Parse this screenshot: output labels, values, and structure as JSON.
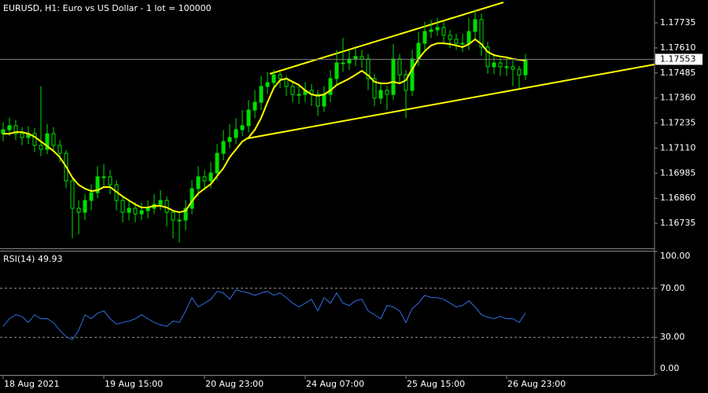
{
  "chart_data": [
    {
      "type": "candlestick",
      "title": "EURUSD, H1:  Euro vs US Dollar - 1 lot = 100000",
      "categories": [
        "18 Aug 2021",
        null,
        null,
        null,
        null,
        null,
        null,
        null,
        null,
        null,
        null,
        null,
        null,
        null,
        null,
        null,
        "19 Aug 15:00",
        null,
        null,
        null,
        null,
        null,
        null,
        null,
        null,
        null,
        null,
        null,
        null,
        null,
        null,
        null,
        "20 Aug 23:00",
        null,
        null,
        null,
        null,
        null,
        null,
        null,
        null,
        null,
        null,
        null,
        null,
        null,
        null,
        null,
        "24 Aug 07:00",
        null,
        null,
        null,
        null,
        null,
        null,
        null,
        null,
        null,
        null,
        null,
        null,
        null,
        null,
        null,
        "25 Aug 15:00",
        null,
        null,
        null,
        null,
        null,
        null,
        null,
        null,
        null,
        null,
        null,
        null,
        null,
        null,
        null,
        "26 Aug 23:00",
        null,
        null,
        null
      ],
      "open": [
        1.1718,
        1.17202,
        1.17222,
        1.17182,
        1.17163,
        1.17182,
        1.17124,
        1.17104,
        1.17182,
        1.17124,
        1.17084,
        1.16947,
        1.1681,
        1.1679,
        1.16849,
        1.16888,
        1.16967,
        1.16967,
        1.16927,
        1.16849,
        1.1679,
        1.1681,
        1.16782,
        1.16798,
        1.1681,
        1.16829,
        1.16849,
        1.1679,
        1.16751,
        1.16751,
        1.1681,
        1.16908,
        1.16967,
        1.16947,
        1.16986,
        1.17084,
        1.17143,
        1.17163,
        1.17202,
        1.17222,
        1.173,
        1.17339,
        1.17418,
        1.17437,
        1.17476,
        1.17457,
        1.17418,
        1.17378,
        1.17378,
        1.17398,
        1.17378,
        1.1732,
        1.17378,
        1.17457,
        1.17535,
        1.17535,
        1.17555,
        1.17567,
        1.17555,
        1.17457,
        1.17359,
        1.17398,
        1.17378,
        1.17555,
        1.17476,
        1.17398,
        1.17555,
        1.17633,
        1.17692,
        1.177,
        1.17712,
        1.17673,
        1.17653,
        1.17633,
        1.17633,
        1.17692,
        1.17751,
        1.17614,
        1.17516,
        1.17535,
        1.17516,
        1.17516,
        1.17504,
        1.17476
      ],
      "high": [
        1.1724,
        1.17262,
        1.1725,
        1.17215,
        1.1722,
        1.1721,
        1.17418,
        1.1723,
        1.17215,
        1.1715,
        1.171,
        1.1697,
        1.1685,
        1.1688,
        1.1693,
        1.1702,
        1.1703,
        1.17,
        1.1695,
        1.1687,
        1.1685,
        1.1684,
        1.1684,
        1.1685,
        1.1688,
        1.169,
        1.1687,
        1.168,
        1.1679,
        1.1685,
        1.1695,
        1.1702,
        1.17,
        1.1704,
        1.1713,
        1.172,
        1.1723,
        1.1726,
        1.173,
        1.1735,
        1.174,
        1.1747,
        1.1749,
        1.175,
        1.1749,
        1.1747,
        1.1744,
        1.1742,
        1.1744,
        1.1743,
        1.174,
        1.1742,
        1.175,
        1.176,
        1.1766,
        1.176,
        1.1761,
        1.176,
        1.1758,
        1.1748,
        1.1744,
        1.1742,
        1.1763,
        1.1758,
        1.175,
        1.176,
        1.1769,
        1.1774,
        1.1775,
        1.1776,
        1.1774,
        1.177,
        1.1768,
        1.1768,
        1.1776,
        1.178,
        1.1778,
        1.1764,
        1.1758,
        1.1756,
        1.1756,
        1.1755,
        1.1752,
        1.1758
      ],
      "low": [
        1.17145,
        1.1717,
        1.1715,
        1.17125,
        1.1713,
        1.1709,
        1.1707,
        1.1708,
        1.17095,
        1.1704,
        1.1691,
        1.1666,
        1.1668,
        1.1675,
        1.168,
        1.1686,
        1.1692,
        1.1688,
        1.168,
        1.1674,
        1.1675,
        1.1674,
        1.1675,
        1.1676,
        1.1678,
        1.168,
        1.1672,
        1.1666,
        1.1664,
        1.167,
        1.1678,
        1.1687,
        1.169,
        1.1691,
        1.1695,
        1.1705,
        1.1711,
        1.1713,
        1.1717,
        1.1719,
        1.1726,
        1.173,
        1.1738,
        1.174,
        1.1741,
        1.1737,
        1.1734,
        1.1733,
        1.1734,
        1.1732,
        1.1727,
        1.1729,
        1.1734,
        1.1743,
        1.1749,
        1.175,
        1.1752,
        1.1751,
        1.174,
        1.1732,
        1.1733,
        1.173,
        1.1735,
        1.1743,
        1.1726,
        1.1737,
        1.1752,
        1.176,
        1.1766,
        1.1767,
        1.1763,
        1.1761,
        1.176,
        1.1759,
        1.176,
        1.1765,
        1.1757,
        1.1748,
        1.1748,
        1.1747,
        1.1747,
        1.1742,
        1.1741,
        1.1745
      ],
      "close": [
        1.17202,
        1.17222,
        1.17182,
        1.17163,
        1.17182,
        1.17124,
        1.17104,
        1.17182,
        1.17124,
        1.17084,
        1.16947,
        1.1681,
        1.1679,
        1.16849,
        1.16888,
        1.16967,
        1.16967,
        1.16927,
        1.16849,
        1.1679,
        1.1681,
        1.16782,
        1.16798,
        1.1681,
        1.16829,
        1.16849,
        1.1679,
        1.16751,
        1.16751,
        1.1681,
        1.16908,
        1.16967,
        1.16947,
        1.16986,
        1.17084,
        1.17143,
        1.17163,
        1.17202,
        1.17222,
        1.173,
        1.17339,
        1.17418,
        1.17437,
        1.17476,
        1.17457,
        1.17418,
        1.17378,
        1.17378,
        1.17398,
        1.17378,
        1.1732,
        1.17378,
        1.17457,
        1.17535,
        1.17535,
        1.17555,
        1.17567,
        1.17555,
        1.17457,
        1.17359,
        1.17398,
        1.17378,
        1.17555,
        1.17476,
        1.17398,
        1.17555,
        1.17633,
        1.17692,
        1.177,
        1.17712,
        1.17673,
        1.17653,
        1.17633,
        1.17633,
        1.17692,
        1.17751,
        1.17614,
        1.17516,
        1.17535,
        1.17516,
        1.17516,
        1.17504,
        1.17476,
        1.17553
      ],
      "color": "#00e000",
      "overlays": [
        {
          "color": "#ffff00",
          "values": [
            1.17182,
            1.17182,
            1.1719,
            1.1719,
            1.17182,
            1.17167,
            1.17143,
            1.1712,
            1.17096,
            1.17065,
            1.17018,
            1.16963,
            1.16927,
            1.16908,
            1.16896,
            1.169,
            1.16916,
            1.16916,
            1.16892,
            1.16869,
            1.16849,
            1.16829,
            1.16814,
            1.16814,
            1.16822,
            1.16822,
            1.16814,
            1.16798,
            1.1679,
            1.16798,
            1.16845,
            1.16884,
            1.16908,
            1.16931,
            1.16971,
            1.1701,
            1.17065,
            1.17104,
            1.17143,
            1.17163,
            1.17202,
            1.17261,
            1.17339,
            1.1741,
            1.17449,
            1.17457,
            1.17441,
            1.17425,
            1.17398,
            1.17378,
            1.17371,
            1.17378,
            1.17398,
            1.17425,
            1.17441,
            1.17457,
            1.17476,
            1.17496,
            1.17473,
            1.17441,
            1.17433,
            1.17433,
            1.17441,
            1.17433,
            1.17449,
            1.17504,
            1.17555,
            1.17594,
            1.17622,
            1.17633,
            1.17633,
            1.17629,
            1.17622,
            1.17614,
            1.17629,
            1.17653,
            1.17629,
            1.1759,
            1.17574,
            1.17567,
            1.17563,
            1.17555,
            1.17551,
            1.17547
          ]
        }
      ],
      "current_price": 1.17553,
      "ylim": [
        1.1661,
        1.17849
      ],
      "yticks": [
        1.17735,
        {
          "value": 1.1761,
          "label": "1.17610"
        },
        1.17485,
        {
          "value": 1.1736,
          "label": "1.17360"
        },
        1.17235,
        {
          "value": 1.1711,
          "label": "1.17110"
        },
        1.16985,
        {
          "value": 1.1686,
          "label": "1.16860"
        },
        1.16735
      ]
    },
    {
      "type": "line",
      "title": "RSI(14) 49.93",
      "color": "#2f6fe0",
      "values": [
        38.9,
        45.2,
        48.4,
        47.1,
        42.1,
        48.4,
        45.2,
        45.2,
        42.1,
        35.7,
        30.6,
        28.1,
        35.7,
        48.4,
        45.2,
        49.7,
        51.6,
        45.2,
        40.8,
        42.1,
        43.3,
        45.2,
        48.4,
        45.2,
        42.1,
        40.2,
        38.9,
        43.3,
        42.1,
        51.6,
        62.4,
        54.8,
        57.9,
        61.1,
        67.5,
        66.2,
        61.1,
        68.7,
        67.5,
        66.2,
        64.3,
        66.2,
        67.5,
        64.3,
        66.2,
        62.4,
        57.9,
        54.8,
        57.9,
        61.1,
        51.6,
        62.4,
        57.9,
        66.2,
        57.9,
        56.0,
        59.8,
        61.1,
        51.6,
        48.4,
        45.2,
        56.0,
        54.8,
        51.6,
        42.1,
        53.5,
        57.9,
        64.3,
        62.4,
        62.4,
        61.1,
        57.9,
        54.8,
        56.0,
        59.8,
        54.8,
        48.4,
        46.5,
        45.2,
        47.1,
        45.2,
        45.2,
        42.1,
        49.93
      ],
      "levels": [
        70,
        30
      ],
      "ylim": [
        0,
        100
      ],
      "yticks": [
        {
          "value": 100,
          "label": "100.00"
        },
        {
          "value": 70,
          "label": "70.00"
        },
        {
          "value": 30,
          "label": "30.00"
        },
        {
          "value": 0,
          "label": "0.00"
        }
      ]
    }
  ]
}
